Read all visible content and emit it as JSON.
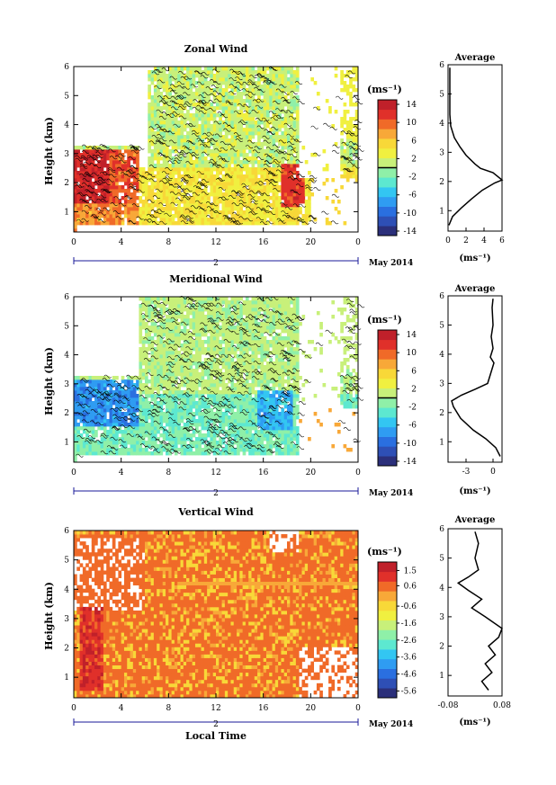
{
  "colors": {
    "ramp": [
      "#2b2f7a",
      "#2e4fb5",
      "#2a6fe0",
      "#2f9cf2",
      "#33c6f2",
      "#5de8d0",
      "#8ff0a8",
      "#c8f07a",
      "#f0f040",
      "#f8d838",
      "#f8a838",
      "#f06a28",
      "#e0302a",
      "#c0202a"
    ]
  },
  "chart_data": [
    {
      "type": "heatmap",
      "title": "Zonal Wind",
      "ylabel": "Height (km)",
      "xlabel": "",
      "date_label": "May 2014",
      "day_label": "2",
      "xlim": [
        0,
        24
      ],
      "ylim": [
        0.3,
        6
      ],
      "x_ticks": [
        "0",
        "4",
        "8",
        "12",
        "16",
        "20",
        "0"
      ],
      "y_ticks": [
        "1",
        "2",
        "3",
        "4",
        "5",
        "6"
      ],
      "colorbar": {
        "unit": "(ms⁻¹)",
        "ticks": [
          "14",
          "10",
          "6",
          "2",
          "-2",
          "-6",
          "-10",
          "-14"
        ],
        "range": [
          -15,
          15
        ],
        "marker": 0
      },
      "average": {
        "title": "Average",
        "xlabel": "(ms⁻¹)",
        "xlim": [
          0,
          6
        ],
        "x_ticks": [
          "0",
          "2",
          "4",
          "6"
        ],
        "profile": [
          [
            0.1,
            0.5
          ],
          [
            0.5,
            0.8
          ],
          [
            1.5,
            1.1
          ],
          [
            2.6,
            1.4
          ],
          [
            3.8,
            1.7
          ],
          [
            5.2,
            1.95
          ],
          [
            6.0,
            2.05
          ],
          [
            5.0,
            2.3
          ],
          [
            3.6,
            2.45
          ],
          [
            3.0,
            2.6
          ],
          [
            2.0,
            2.9
          ],
          [
            1.3,
            3.2
          ],
          [
            0.7,
            3.5
          ],
          [
            0.3,
            3.9
          ],
          [
            0.2,
            4.3
          ],
          [
            0.2,
            5.0
          ],
          [
            0.2,
            5.6
          ],
          [
            0.2,
            5.9
          ]
        ]
      }
    },
    {
      "type": "heatmap",
      "title": "Meridional Wind",
      "ylabel": "Height (km)",
      "xlabel": "",
      "date_label": "May 2014",
      "day_label": "2",
      "xlim": [
        0,
        24
      ],
      "ylim": [
        0.3,
        6
      ],
      "x_ticks": [
        "0",
        "4",
        "8",
        "12",
        "16",
        "20",
        "0"
      ],
      "y_ticks": [
        "1",
        "2",
        "3",
        "4",
        "5",
        "6"
      ],
      "colorbar": {
        "unit": "(ms⁻¹)",
        "ticks": [
          "14",
          "10",
          "6",
          "2",
          "-2",
          "-6",
          "-10",
          "-14"
        ],
        "range": [
          -15,
          15
        ],
        "marker": 0
      },
      "average": {
        "title": "Average",
        "xlabel": "(ms⁻¹)",
        "xlim": [
          -5,
          1
        ],
        "x_ticks": [
          "-3",
          "0"
        ],
        "profile": [
          [
            0.8,
            0.5
          ],
          [
            0.3,
            0.8
          ],
          [
            -0.8,
            1.1
          ],
          [
            -2.2,
            1.4
          ],
          [
            -3.6,
            1.8
          ],
          [
            -4.4,
            2.2
          ],
          [
            -4.6,
            2.4
          ],
          [
            -3.5,
            2.6
          ],
          [
            -2.0,
            2.8
          ],
          [
            -0.6,
            3.0
          ],
          [
            -0.2,
            3.4
          ],
          [
            0.1,
            3.7
          ],
          [
            -0.3,
            3.9
          ],
          [
            0.0,
            4.2
          ],
          [
            -0.2,
            4.6
          ],
          [
            0.0,
            5.0
          ],
          [
            -0.1,
            5.6
          ],
          [
            0.0,
            5.9
          ]
        ]
      }
    },
    {
      "type": "heatmap",
      "title": "Vertical Wind",
      "ylabel": "Height (km)",
      "xlabel": "Local Time",
      "date_label": "May 2014",
      "day_label": "2",
      "xlim": [
        0,
        24
      ],
      "ylim": [
        0.3,
        6
      ],
      "x_ticks": [
        "0",
        "4",
        "8",
        "12",
        "16",
        "20",
        "0"
      ],
      "y_ticks": [
        "1",
        "2",
        "3",
        "4",
        "5",
        "6"
      ],
      "colorbar": {
        "unit": "(ms⁻¹)",
        "ticks": [
          "1.5",
          "0.6",
          "-0.6",
          "-1.6",
          "-2.6",
          "-3.6",
          "-4.6",
          "-5.6"
        ],
        "range": [
          -6,
          2
        ],
        "marker": null
      },
      "average": {
        "title": "Average",
        "xlabel": "(ms⁻¹)",
        "xlim": [
          -0.08,
          0.08
        ],
        "x_ticks": [
          "-0.08",
          "0.08"
        ],
        "profile": [
          [
            0.04,
            0.5
          ],
          [
            0.02,
            0.8
          ],
          [
            0.05,
            1.1
          ],
          [
            0.03,
            1.4
          ],
          [
            0.06,
            1.7
          ],
          [
            0.04,
            2.0
          ],
          [
            0.07,
            2.3
          ],
          [
            0.08,
            2.6
          ],
          [
            0.03,
            3.0
          ],
          [
            -0.01,
            3.3
          ],
          [
            0.02,
            3.6
          ],
          [
            -0.02,
            3.9
          ],
          [
            -0.05,
            4.15
          ],
          [
            -0.02,
            4.35
          ],
          [
            0.01,
            4.6
          ],
          [
            0.0,
            5.0
          ],
          [
            0.01,
            5.5
          ],
          [
            0.0,
            5.9
          ]
        ]
      }
    }
  ]
}
